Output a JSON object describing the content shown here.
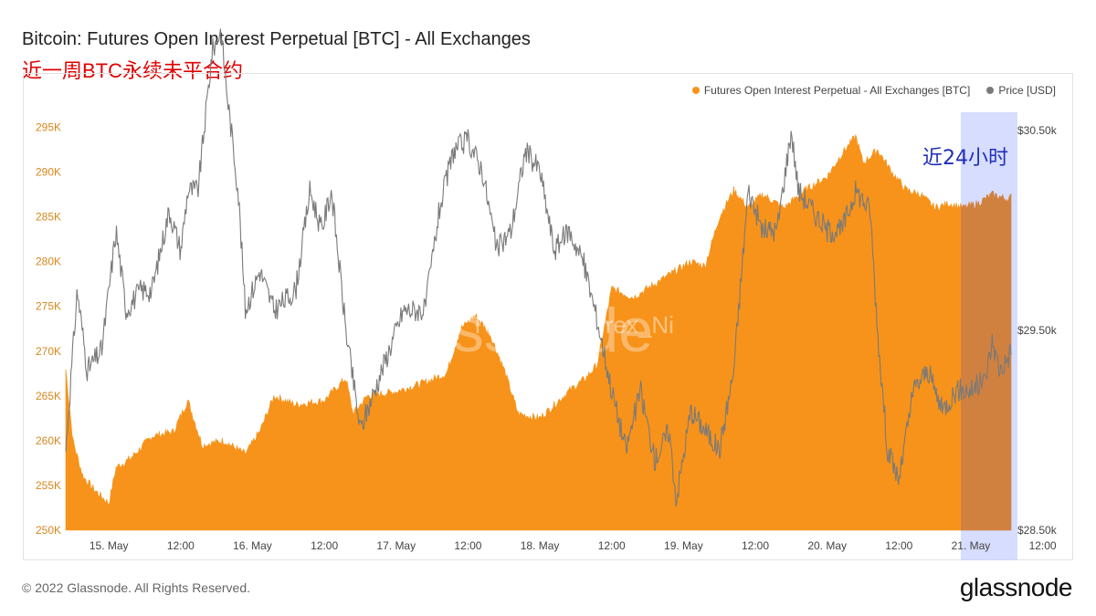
{
  "header": {
    "title": "Bitcoin: Futures Open Interest Perpetual [BTC] - All Exchanges",
    "subtitle": "近一周BTC永续未平合约"
  },
  "footer": {
    "copyright": "© 2022 Glassnode. All Rights Reserved.",
    "brand": "glassnode"
  },
  "colors": {
    "oi": "#f7931a",
    "price": "#7a7a7a",
    "highlight": "#c9d2ff",
    "axis_left": "#d9861c"
  },
  "chart_data": {
    "type": "area",
    "title": "Bitcoin: Futures Open Interest Perpetual [BTC] - All Exchanges",
    "legend_position": "top-right",
    "legend": [
      "Futures Open Interest Perpetual - All Exchanges [BTC]",
      "Price [USD]"
    ],
    "watermark": "Twitter@Phyrex_Ni",
    "annotation": "近24小时",
    "x_ticks": [
      "15. May",
      "12:00",
      "16. May",
      "12:00",
      "17. May",
      "12:00",
      "18. May",
      "12:00",
      "19. May",
      "12:00",
      "20. May",
      "12:00",
      "21. May",
      "12:00"
    ],
    "x_range_days": [
      14.7,
      21.28
    ],
    "highlight_range_days": [
      20.93,
      21.28
    ],
    "y_left": {
      "ticks": [
        "250K",
        "255K",
        "260K",
        "265K",
        "270K",
        "275K",
        "280K",
        "285K",
        "290K",
        "295K"
      ],
      "range": [
        250000,
        298000
      ]
    },
    "y_right": {
      "ticks": [
        "$28.50k",
        "$29.50k",
        "$30.50k"
      ],
      "range": [
        28500,
        30650
      ]
    },
    "series": [
      {
        "name": "Futures Open Interest Perpetual - All Exchanges [BTC]",
        "axis": "left",
        "points": [
          [
            14.7,
            268000
          ],
          [
            14.75,
            260000
          ],
          [
            14.82,
            256000
          ],
          [
            14.9,
            254500
          ],
          [
            15.0,
            253000
          ],
          [
            15.05,
            257000
          ],
          [
            15.15,
            258000
          ],
          [
            15.3,
            260500
          ],
          [
            15.45,
            261000
          ],
          [
            15.55,
            264500
          ],
          [
            15.65,
            259500
          ],
          [
            15.8,
            260000
          ],
          [
            15.95,
            258500
          ],
          [
            16.05,
            261000
          ],
          [
            16.15,
            265000
          ],
          [
            16.3,
            264000
          ],
          [
            16.5,
            264500
          ],
          [
            16.65,
            267000
          ],
          [
            16.7,
            263000
          ],
          [
            16.8,
            265000
          ],
          [
            17.0,
            265500
          ],
          [
            17.2,
            266500
          ],
          [
            17.35,
            267500
          ],
          [
            17.45,
            272500
          ],
          [
            17.55,
            274000
          ],
          [
            17.65,
            272000
          ],
          [
            17.75,
            268000
          ],
          [
            17.85,
            263000
          ],
          [
            18.0,
            262500
          ],
          [
            18.1,
            264000
          ],
          [
            18.2,
            265500
          ],
          [
            18.32,
            267000
          ],
          [
            18.4,
            268500
          ],
          [
            18.5,
            277000
          ],
          [
            18.65,
            276000
          ],
          [
            18.8,
            277500
          ],
          [
            18.95,
            279000
          ],
          [
            19.05,
            280000
          ],
          [
            19.15,
            279500
          ],
          [
            19.25,
            285000
          ],
          [
            19.35,
            288000
          ],
          [
            19.45,
            286000
          ],
          [
            19.55,
            287500
          ],
          [
            19.7,
            286000
          ],
          [
            19.85,
            288000
          ],
          [
            20.0,
            289500
          ],
          [
            20.1,
            292000
          ],
          [
            20.2,
            294000
          ],
          [
            20.25,
            291000
          ],
          [
            20.35,
            292500
          ],
          [
            20.45,
            290000
          ],
          [
            20.55,
            288000
          ],
          [
            20.65,
            287500
          ],
          [
            20.75,
            286000
          ],
          [
            20.85,
            286500
          ],
          [
            20.95,
            286000
          ],
          [
            21.05,
            286500
          ],
          [
            21.15,
            287500
          ],
          [
            21.25,
            287000
          ],
          [
            21.28,
            287200
          ]
        ]
      },
      {
        "name": "Price [USD]",
        "axis": "right",
        "points": [
          [
            14.7,
            28900
          ],
          [
            14.78,
            29700
          ],
          [
            14.85,
            29300
          ],
          [
            14.95,
            29400
          ],
          [
            15.05,
            30000
          ],
          [
            15.12,
            29600
          ],
          [
            15.22,
            29700
          ],
          [
            15.3,
            29700
          ],
          [
            15.42,
            30100
          ],
          [
            15.5,
            29900
          ],
          [
            15.55,
            30200
          ],
          [
            15.62,
            30200
          ],
          [
            15.72,
            30900
          ],
          [
            15.78,
            31000
          ],
          [
            15.82,
            30700
          ],
          [
            15.9,
            30200
          ],
          [
            15.95,
            29600
          ],
          [
            16.05,
            29800
          ],
          [
            16.15,
            29600
          ],
          [
            16.3,
            29700
          ],
          [
            16.4,
            30200
          ],
          [
            16.48,
            30000
          ],
          [
            16.55,
            30200
          ],
          [
            16.65,
            29500
          ],
          [
            16.75,
            29000
          ],
          [
            16.85,
            29200
          ],
          [
            16.95,
            29400
          ],
          [
            17.05,
            29600
          ],
          [
            17.2,
            29600
          ],
          [
            17.3,
            30100
          ],
          [
            17.4,
            30400
          ],
          [
            17.5,
            30450
          ],
          [
            17.6,
            30300
          ],
          [
            17.7,
            29900
          ],
          [
            17.8,
            30000
          ],
          [
            17.9,
            30400
          ],
          [
            18.0,
            30300
          ],
          [
            18.1,
            29900
          ],
          [
            18.2,
            30000
          ],
          [
            18.3,
            29850
          ],
          [
            18.4,
            29550
          ],
          [
            18.5,
            29200
          ],
          [
            18.6,
            28900
          ],
          [
            18.7,
            29200
          ],
          [
            18.8,
            28850
          ],
          [
            18.9,
            29000
          ],
          [
            18.95,
            28650
          ],
          [
            19.05,
            29100
          ],
          [
            19.15,
            29000
          ],
          [
            19.25,
            28900
          ],
          [
            19.35,
            29300
          ],
          [
            19.45,
            30200
          ],
          [
            19.55,
            30000
          ],
          [
            19.65,
            30000
          ],
          [
            19.75,
            30500
          ],
          [
            19.8,
            30200
          ],
          [
            19.9,
            30100
          ],
          [
            20.0,
            30000
          ],
          [
            20.1,
            30000
          ],
          [
            20.2,
            30200
          ],
          [
            20.3,
            30100
          ],
          [
            20.35,
            29500
          ],
          [
            20.42,
            28900
          ],
          [
            20.5,
            28750
          ],
          [
            20.6,
            29200
          ],
          [
            20.7,
            29300
          ],
          [
            20.8,
            29100
          ],
          [
            20.9,
            29200
          ],
          [
            21.0,
            29200
          ],
          [
            21.1,
            29250
          ],
          [
            21.15,
            29450
          ],
          [
            21.2,
            29300
          ],
          [
            21.25,
            29350
          ],
          [
            21.28,
            29400
          ]
        ]
      }
    ]
  }
}
